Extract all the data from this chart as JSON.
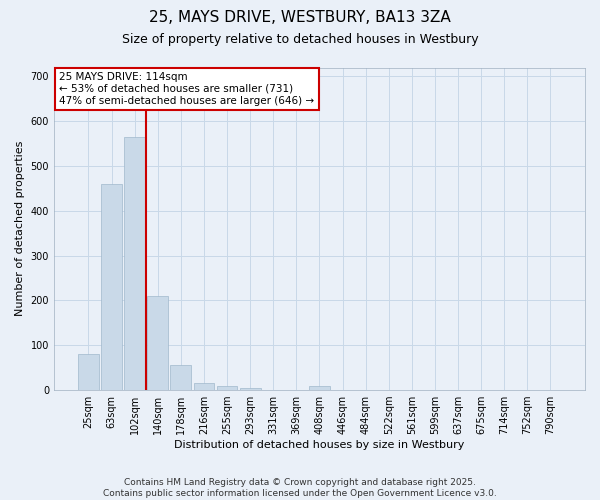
{
  "title": "25, MAYS DRIVE, WESTBURY, BA13 3ZA",
  "subtitle": "Size of property relative to detached houses in Westbury",
  "xlabel": "Distribution of detached houses by size in Westbury",
  "ylabel": "Number of detached properties",
  "categories": [
    "25sqm",
    "63sqm",
    "102sqm",
    "140sqm",
    "178sqm",
    "216sqm",
    "255sqm",
    "293sqm",
    "331sqm",
    "369sqm",
    "408sqm",
    "446sqm",
    "484sqm",
    "522sqm",
    "561sqm",
    "599sqm",
    "637sqm",
    "675sqm",
    "714sqm",
    "752sqm",
    "790sqm"
  ],
  "values": [
    80,
    460,
    565,
    210,
    55,
    15,
    10,
    5,
    0,
    0,
    8,
    0,
    0,
    0,
    0,
    0,
    0,
    0,
    0,
    0,
    0
  ],
  "bar_color": "#c9d9e8",
  "bar_edge_color": "#a0b8cc",
  "vline_x": 2.5,
  "vline_color": "#cc0000",
  "annotation_line1": "25 MAYS DRIVE: 114sqm",
  "annotation_line2": "← 53% of detached houses are smaller (731)",
  "annotation_line3": "47% of semi-detached houses are larger (646) →",
  "annotation_box_color": "#ffffff",
  "annotation_box_edge": "#cc0000",
  "ylim": [
    0,
    720
  ],
  "yticks": [
    0,
    100,
    200,
    300,
    400,
    500,
    600,
    700
  ],
  "grid_color": "#c8d8e8",
  "background_color": "#eaf0f8",
  "footer": "Contains HM Land Registry data © Crown copyright and database right 2025.\nContains public sector information licensed under the Open Government Licence v3.0.",
  "title_fontsize": 11,
  "subtitle_fontsize": 9,
  "axis_label_fontsize": 8,
  "tick_fontsize": 7,
  "annotation_fontsize": 7.5,
  "footer_fontsize": 6.5
}
